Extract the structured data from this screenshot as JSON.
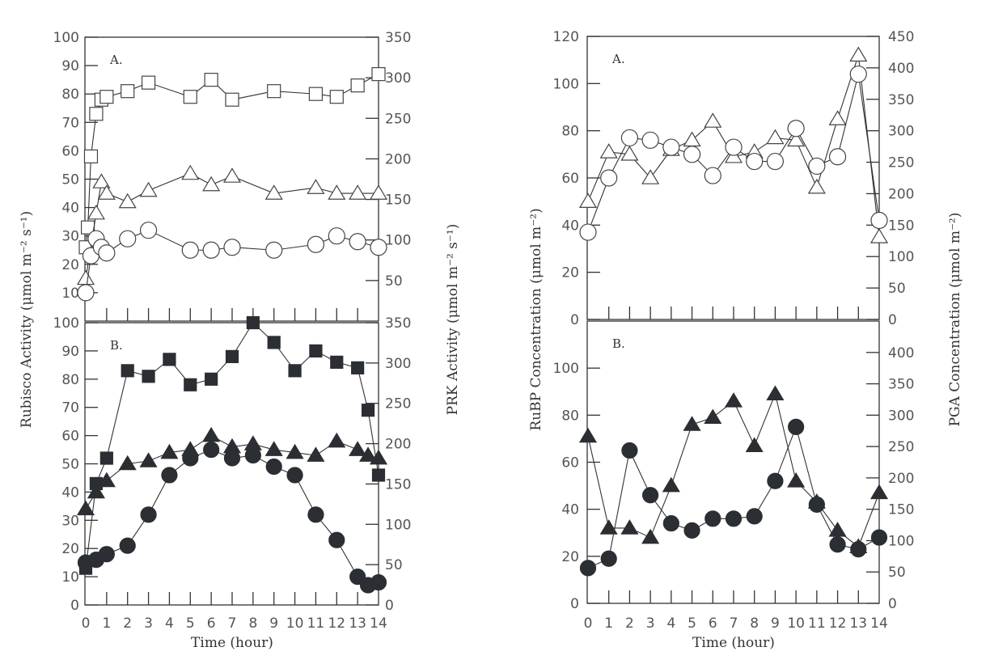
{
  "chart_data": [
    {
      "type": "line",
      "title": "",
      "xlabel": "Time (hour)",
      "x_ticks": [
        "0",
        "1",
        "2",
        "3",
        "4",
        "5",
        "6",
        "7",
        "8",
        "9",
        "10",
        "11",
        "12",
        "13",
        "14"
      ],
      "xlim": [
        0,
        14
      ],
      "left_ylabel": "Rubisco Activity (μmol m⁻² s⁻¹)",
      "right_ylabel": "PRK Activity (μmol m⁻² s⁻¹)",
      "panels": [
        {
          "label": "A.",
          "left_ylim": [
            0,
            100
          ],
          "left_ticks": [
            "10",
            "20",
            "30",
            "40",
            "50",
            "60",
            "70",
            "80",
            "90",
            "100"
          ],
          "right_ylim": [
            0,
            350
          ],
          "right_ticks": [
            "50",
            "100",
            "150",
            "200",
            "250",
            "300",
            "350"
          ],
          "series": [
            {
              "name": "open-square",
              "marker": "square",
              "filled": false,
              "axis": "left",
              "x": [
                0,
                0.1,
                0.25,
                0.5,
                0.75,
                1,
                2,
                3,
                5,
                6,
                7,
                9,
                11,
                12,
                13,
                14
              ],
              "y": [
                26,
                33,
                58,
                73,
                78,
                79,
                81,
                84,
                79,
                85,
                78,
                81,
                80,
                79,
                83,
                87
              ]
            },
            {
              "name": "open-triangle",
              "marker": "triangle",
              "filled": false,
              "axis": "left",
              "x": [
                0,
                0.5,
                0.75,
                1,
                2,
                3,
                5,
                6,
                7,
                9,
                11,
                12,
                13,
                14
              ],
              "y": [
                15,
                38,
                49,
                45,
                42,
                46,
                52,
                48,
                51,
                45,
                47,
                45,
                45,
                45
              ]
            },
            {
              "name": "open-circle",
              "marker": "circle",
              "filled": false,
              "axis": "left",
              "x": [
                0,
                0.25,
                0.5,
                0.75,
                1,
                2,
                3,
                5,
                6,
                7,
                9,
                11,
                12,
                13,
                14
              ],
              "y": [
                10,
                23,
                29,
                26,
                24,
                29,
                32,
                25,
                25,
                26,
                25,
                27,
                30,
                28,
                26
              ]
            }
          ]
        },
        {
          "label": "B.",
          "left_ylim": [
            0,
            100
          ],
          "left_ticks": [
            "0",
            "10",
            "20",
            "30",
            "40",
            "50",
            "60",
            "70",
            "80",
            "90",
            "100"
          ],
          "right_ylim": [
            0,
            350
          ],
          "right_ticks": [
            "0",
            "50",
            "100",
            "150",
            "200",
            "250",
            "300",
            "350"
          ],
          "series": [
            {
              "name": "filled-square",
              "marker": "square",
              "filled": true,
              "axis": "left",
              "x": [
                0,
                0.5,
                1,
                2,
                3,
                4,
                5,
                6,
                7,
                8,
                9,
                10,
                11,
                12,
                13,
                13.5,
                14
              ],
              "y": [
                13,
                43,
                52,
                83,
                81,
                87,
                78,
                80,
                88,
                100,
                93,
                83,
                90,
                86,
                84,
                69,
                46
              ]
            },
            {
              "name": "filled-triangle",
              "marker": "triangle",
              "filled": true,
              "axis": "left",
              "x": [
                0,
                0.5,
                1,
                2,
                3,
                4,
                5,
                6,
                7,
                8,
                9,
                10,
                11,
                12,
                13,
                13.5,
                14
              ],
              "y": [
                34,
                40,
                44,
                50,
                51,
                54,
                55,
                60,
                56,
                57,
                55,
                54,
                53,
                58,
                55,
                53,
                52
              ]
            },
            {
              "name": "filled-circle",
              "marker": "circle",
              "filled": true,
              "axis": "left",
              "x": [
                0,
                0.5,
                1,
                2,
                3,
                4,
                5,
                6,
                7,
                8,
                9,
                10,
                11,
                12,
                13,
                13.5,
                14
              ],
              "y": [
                15,
                16,
                18,
                21,
                32,
                46,
                52,
                55,
                52,
                53,
                49,
                46,
                32,
                23,
                10,
                7,
                8
              ]
            }
          ]
        }
      ]
    },
    {
      "type": "line",
      "title": "",
      "xlabel": "Time (hour)",
      "x_ticks": [
        "0",
        "1",
        "2",
        "3",
        "4",
        "5",
        "6",
        "7",
        "8",
        "9",
        "10",
        "11",
        "12",
        "13",
        "14"
      ],
      "xlim": [
        0,
        14
      ],
      "left_ylabel": "RuBP Concentration (μmol m⁻²)",
      "right_ylabel": "PGA Concentration (μmol m⁻²)",
      "panels": [
        {
          "label": "A.",
          "left_ylim": [
            0,
            120
          ],
          "left_ticks": [
            "0",
            "20",
            "40",
            "60",
            "80",
            "100",
            "120"
          ],
          "right_ylim": [
            0,
            450
          ],
          "right_ticks": [
            "0",
            "50",
            "100",
            "150",
            "200",
            "250",
            "300",
            "350",
            "400",
            "450"
          ],
          "series": [
            {
              "name": "open-triangle",
              "marker": "triangle",
              "filled": false,
              "axis": "left",
              "x": [
                0,
                1,
                2,
                3,
                4,
                5,
                6,
                7,
                8,
                9,
                10,
                11,
                12,
                13,
                14
              ],
              "y": [
                50,
                71,
                70,
                60,
                72,
                76,
                84,
                69,
                71,
                77,
                76,
                56,
                85,
                112,
                35
              ]
            },
            {
              "name": "open-circle",
              "marker": "circle",
              "filled": false,
              "axis": "left",
              "x": [
                0,
                1,
                2,
                3,
                4,
                5,
                6,
                7,
                8,
                9,
                10,
                11,
                12,
                13,
                14
              ],
              "y": [
                37,
                60,
                77,
                76,
                73,
                70,
                61,
                73,
                67,
                67,
                81,
                65,
                69,
                104,
                42
              ]
            }
          ]
        },
        {
          "label": "B.",
          "left_ylim": [
            0,
            120
          ],
          "left_ticks": [
            "0",
            "20",
            "40",
            "60",
            "80",
            "100"
          ],
          "right_ylim": [
            0,
            450
          ],
          "right_ticks": [
            "0",
            "50",
            "100",
            "150",
            "200",
            "250",
            "300",
            "350",
            "400"
          ],
          "series": [
            {
              "name": "filled-triangle",
              "marker": "triangle",
              "filled": true,
              "axis": "left",
              "x": [
                0,
                1,
                2,
                3,
                4,
                5,
                6,
                7,
                8,
                9,
                10,
                11,
                12,
                13,
                14
              ],
              "y": [
                71,
                32,
                32,
                28,
                50,
                76,
                79,
                86,
                67,
                89,
                52,
                43,
                31,
                24,
                47
              ]
            },
            {
              "name": "filled-circle",
              "marker": "circle",
              "filled": true,
              "axis": "left",
              "x": [
                0,
                1,
                2,
                3,
                4,
                5,
                6,
                7,
                8,
                9,
                10,
                11,
                12,
                13,
                14
              ],
              "y": [
                15,
                19,
                65,
                46,
                34,
                31,
                36,
                36,
                37,
                52,
                75,
                42,
                25,
                23,
                28
              ]
            }
          ]
        }
      ]
    }
  ]
}
